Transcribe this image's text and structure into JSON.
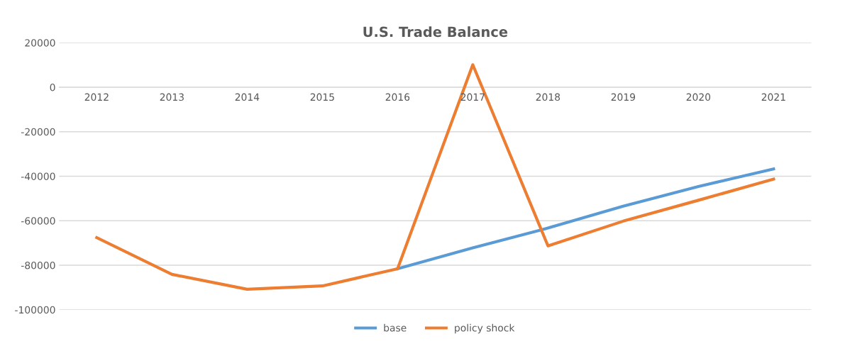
{
  "chart_data": {
    "type": "line",
    "title": "U.S. Trade Balance",
    "categories": [
      "2012",
      "2013",
      "2014",
      "2015",
      "2016",
      "2017",
      "2018",
      "2019",
      "2020",
      "2021"
    ],
    "series": [
      {
        "name": "base",
        "color": "#5b9bd5",
        "values": [
          null,
          null,
          null,
          null,
          -81600,
          -72200,
          -63300,
          -53500,
          -44600,
          -36700
        ]
      },
      {
        "name": "policy shock",
        "color": "#ed7d31",
        "values": [
          -67600,
          -84100,
          -90800,
          -89300,
          -81600,
          10100,
          -71300,
          -60200,
          -50800,
          -41300
        ]
      }
    ],
    "ylim": [
      -100000,
      20000
    ],
    "yticks": [
      -100000,
      -80000,
      -60000,
      -40000,
      -20000,
      0,
      20000
    ],
    "grid": "y",
    "legend": "bottom",
    "marker": "none",
    "line_style": "solid"
  }
}
